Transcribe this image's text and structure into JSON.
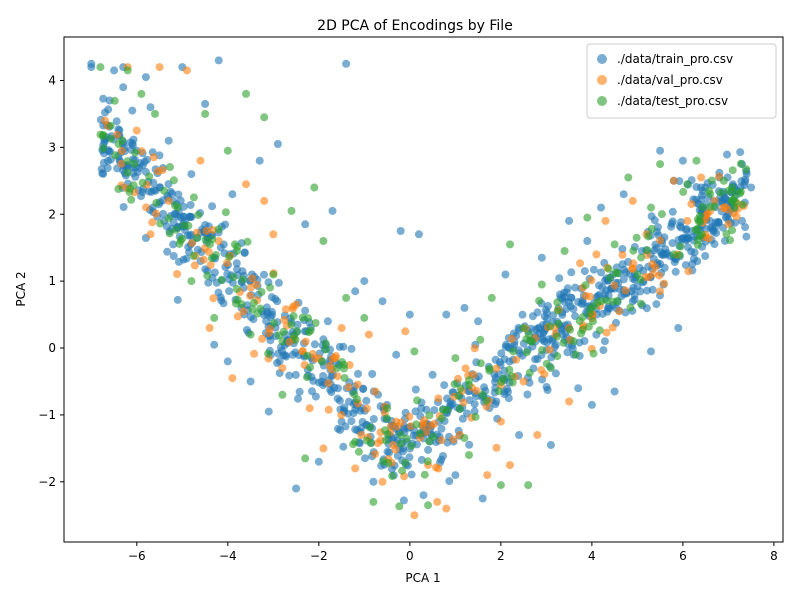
{
  "chart_data": {
    "type": "scatter",
    "title": "2D PCA of Encodings by File",
    "xlabel": "PCA 1",
    "ylabel": "PCA 2",
    "xlim": [
      -7.6,
      8.2
    ],
    "ylim": [
      -2.9,
      4.65
    ],
    "xticks": [
      -6,
      -4,
      -2,
      0,
      2,
      4,
      6,
      8
    ],
    "yticks": [
      -2,
      -1,
      0,
      1,
      2,
      3,
      4
    ],
    "xtick_labels": [
      "−6",
      "−4",
      "−2",
      "0",
      "2",
      "4",
      "6",
      "8"
    ],
    "ytick_labels": [
      "−2",
      "−1",
      "0",
      "1",
      "2",
      "3",
      "4"
    ],
    "grid": false,
    "legend": "top-right",
    "point_alpha": 0.6,
    "shape_description": "V-shaped point cloud: left arm from about (-7, 4.2) down to a trough near (0, -1.5), right arm rising to about (7.5, 2.6)",
    "series": [
      {
        "name": "./data/train_pro.csv",
        "color": "#1f77b4",
        "points": [
          [
            -7.0,
            4.25
          ],
          [
            -7.0,
            4.2
          ],
          [
            -6.6,
            3.7
          ],
          [
            -6.5,
            4.15
          ],
          [
            -6.3,
            4.2
          ],
          [
            -6.3,
            3.9
          ],
          [
            -6.1,
            3.55
          ],
          [
            -6.0,
            2.95
          ],
          [
            -5.8,
            4.05
          ],
          [
            -5.7,
            3.6
          ],
          [
            -5.5,
            2.4
          ],
          [
            -5.4,
            1.9
          ],
          [
            -5.3,
            3.1
          ],
          [
            -5.2,
            1.55
          ],
          [
            -5.1,
            0.72
          ],
          [
            -5.0,
            4.2
          ],
          [
            -4.8,
            2.6
          ],
          [
            -4.6,
            1.3
          ],
          [
            -4.5,
            3.65
          ],
          [
            -4.3,
            0.05
          ],
          [
            -4.2,
            4.3
          ],
          [
            -4.0,
            -0.2
          ],
          [
            -3.9,
            2.3
          ],
          [
            -3.7,
            0.6
          ],
          [
            -3.5,
            -0.5
          ],
          [
            -3.3,
            2.8
          ],
          [
            -3.1,
            -0.95
          ],
          [
            -2.9,
            3.05
          ],
          [
            -2.7,
            0.1
          ],
          [
            -2.5,
            -2.1
          ],
          [
            -2.3,
            1.85
          ],
          [
            -2.0,
            -1.7
          ],
          [
            -1.8,
            0.4
          ],
          [
            -1.7,
            2.05
          ],
          [
            -1.5,
            -1.1
          ],
          [
            -1.4,
            4.25
          ],
          [
            -1.2,
            0.85
          ],
          [
            -1.0,
            1.0
          ],
          [
            -0.8,
            -2.0
          ],
          [
            -0.6,
            0.7
          ],
          [
            -0.3,
            -0.1
          ],
          [
            -0.2,
            1.75
          ],
          [
            0.0,
            0.5
          ],
          [
            0.2,
            1.7
          ],
          [
            0.3,
            -2.2
          ],
          [
            0.5,
            -0.4
          ],
          [
            0.8,
            0.5
          ],
          [
            1.0,
            -1.9
          ],
          [
            1.2,
            0.6
          ],
          [
            1.5,
            0.4
          ],
          [
            1.6,
            -2.25
          ],
          [
            1.9,
            -0.8
          ],
          [
            2.1,
            1.1
          ],
          [
            2.4,
            -1.3
          ],
          [
            2.6,
            0.25
          ],
          [
            2.9,
            1.35
          ],
          [
            3.1,
            -1.45
          ],
          [
            3.3,
            0.8
          ],
          [
            3.5,
            1.9
          ],
          [
            3.7,
            -0.6
          ],
          [
            3.9,
            1.6
          ],
          [
            4.0,
            -0.85
          ],
          [
            4.2,
            2.1
          ],
          [
            4.4,
            1.05
          ],
          [
            4.5,
            -0.65
          ],
          [
            4.7,
            2.3
          ],
          [
            4.9,
            0.7
          ],
          [
            5.1,
            1.45
          ],
          [
            5.3,
            -0.05
          ],
          [
            5.5,
            2.95
          ],
          [
            5.6,
            1.2
          ],
          [
            5.8,
            2.5
          ],
          [
            5.9,
            0.3
          ],
          [
            6.0,
            2.8
          ],
          [
            6.2,
            1.75
          ],
          [
            6.4,
            2.4
          ],
          [
            6.6,
            1.9
          ],
          [
            6.8,
            2.55
          ],
          [
            7.0,
            2.2
          ],
          [
            7.1,
            2.45
          ],
          [
            7.3,
            2.75
          ],
          [
            7.4,
            2.6
          ],
          [
            7.5,
            2.4
          ],
          [
            7.3,
            1.9
          ],
          [
            6.9,
            2.3
          ]
        ]
      },
      {
        "name": "./data/val_pro.csv",
        "color": "#ff7f0e",
        "points": [
          [
            -6.7,
            3.4
          ],
          [
            -6.2,
            4.2
          ],
          [
            -6.0,
            3.25
          ],
          [
            -5.7,
            1.7
          ],
          [
            -5.5,
            4.2
          ],
          [
            -5.3,
            2.2
          ],
          [
            -4.9,
            4.15
          ],
          [
            -4.6,
            2.8
          ],
          [
            -4.4,
            0.3
          ],
          [
            -4.2,
            1.6
          ],
          [
            -3.9,
            -0.45
          ],
          [
            -3.6,
            2.45
          ],
          [
            -3.2,
            2.2
          ],
          [
            -3.0,
            1.7
          ],
          [
            -2.8,
            -0.3
          ],
          [
            -2.5,
            0.65
          ],
          [
            -2.2,
            -0.9
          ],
          [
            -1.9,
            -1.5
          ],
          [
            -1.5,
            0.3
          ],
          [
            -1.2,
            -1.8
          ],
          [
            -0.9,
            0.2
          ],
          [
            -0.6,
            -2.0
          ],
          [
            -0.3,
            -1.1
          ],
          [
            -0.1,
            0.25
          ],
          [
            0.1,
            -2.5
          ],
          [
            0.4,
            -1.75
          ],
          [
            0.6,
            -2.3
          ],
          [
            0.8,
            -2.4
          ],
          [
            1.1,
            -1.3
          ],
          [
            1.4,
            -0.4
          ],
          [
            1.7,
            -1.9
          ],
          [
            2.0,
            -1.1
          ],
          [
            2.2,
            -1.75
          ],
          [
            2.5,
            -0.5
          ],
          [
            2.8,
            -1.3
          ],
          [
            3.2,
            0.2
          ],
          [
            3.5,
            -0.8
          ],
          [
            3.8,
            0.9
          ],
          [
            4.1,
            1.4
          ],
          [
            4.3,
            1.9
          ],
          [
            4.6,
            0.55
          ],
          [
            4.9,
            2.2
          ],
          [
            5.2,
            1.7
          ],
          [
            5.5,
            0.85
          ],
          [
            5.8,
            2.5
          ],
          [
            6.1,
            1.9
          ],
          [
            6.4,
            2.55
          ],
          [
            6.7,
            2.2
          ],
          [
            7.0,
            1.85
          ],
          [
            6.6,
            2.05
          ]
        ]
      },
      {
        "name": "./data/test_pro.csv",
        "color": "#2ca02c",
        "points": [
          [
            -6.8,
            4.2
          ],
          [
            -6.2,
            4.15
          ],
          [
            -6.4,
            3.05
          ],
          [
            -5.9,
            3.8
          ],
          [
            -5.6,
            3.5
          ],
          [
            -5.4,
            2.35
          ],
          [
            -5.1,
            2.1
          ],
          [
            -4.8,
            1.0
          ],
          [
            -4.5,
            3.5
          ],
          [
            -4.3,
            0.45
          ],
          [
            -4.0,
            2.95
          ],
          [
            -3.8,
            1.45
          ],
          [
            -3.6,
            3.8
          ],
          [
            -3.5,
            0.2
          ],
          [
            -3.2,
            3.45
          ],
          [
            -3.0,
            1.1
          ],
          [
            -2.8,
            -0.7
          ],
          [
            -2.6,
            2.05
          ],
          [
            -2.3,
            -1.65
          ],
          [
            -2.1,
            2.4
          ],
          [
            -1.9,
            1.6
          ],
          [
            -1.6,
            -0.3
          ],
          [
            -1.4,
            0.75
          ],
          [
            -1.2,
            -1.4
          ],
          [
            -1.0,
            0.45
          ],
          [
            -0.8,
            -2.3
          ],
          [
            -0.5,
            -0.9
          ],
          [
            -0.2,
            -1.3
          ],
          [
            0.1,
            -0.05
          ],
          [
            0.4,
            -2.35
          ],
          [
            0.7,
            -1.05
          ],
          [
            1.0,
            -0.15
          ],
          [
            1.3,
            -1.6
          ],
          [
            1.6,
            -0.7
          ],
          [
            1.8,
            0.75
          ],
          [
            2.0,
            -2.05
          ],
          [
            2.2,
            1.55
          ],
          [
            2.5,
            0.3
          ],
          [
            2.6,
            -2.05
          ],
          [
            2.9,
            0.95
          ],
          [
            3.1,
            -0.3
          ],
          [
            3.4,
            1.45
          ],
          [
            3.6,
            0.1
          ],
          [
            3.9,
            1.95
          ],
          [
            4.2,
            0.7
          ],
          [
            4.5,
            1.55
          ],
          [
            4.8,
            2.55
          ],
          [
            5.0,
            1.1
          ],
          [
            5.3,
            2.1
          ],
          [
            5.5,
            2.75
          ],
          [
            5.8,
            1.4
          ],
          [
            6.1,
            2.45
          ],
          [
            6.3,
            2.8
          ],
          [
            6.6,
            2.3
          ],
          [
            6.9,
            2.5
          ],
          [
            7.0,
            2.35
          ]
        ]
      }
    ]
  }
}
